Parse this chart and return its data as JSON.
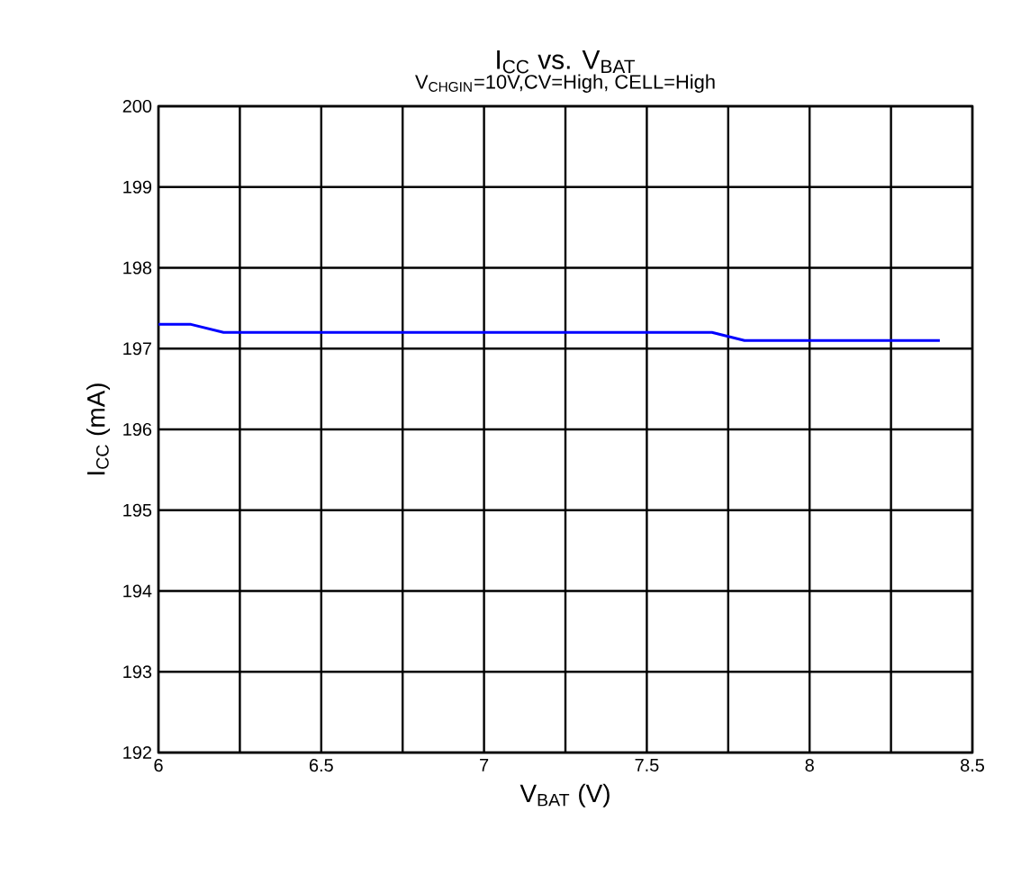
{
  "chart_data": {
    "type": "line",
    "title": "I$_{CC}$ vs. V$_{BAT}$",
    "subtitle": "V$_{CHGIN}$=10V,CV=High, CELL=High",
    "xlabel": "V$_{BAT}$ (V)",
    "ylabel": "I$_{CC}$ (mA)",
    "x": [
      6.0,
      6.1,
      6.15,
      6.2,
      6.25,
      6.5,
      7.0,
      7.5,
      7.65,
      7.7,
      7.75,
      7.8,
      8.0,
      8.4
    ],
    "series": [
      {
        "color": "#0000ff",
        "values": [
          197.3,
          197.3,
          197.25,
          197.2,
          197.2,
          197.2,
          197.2,
          197.2,
          197.2,
          197.2,
          197.15,
          197.1,
          197.1,
          197.1
        ]
      }
    ],
    "xlim": [
      6,
      8.5
    ],
    "ylim": [
      192,
      200
    ],
    "xticks": [
      6,
      {
        "value": 6.25,
        "label": null
      },
      6.5,
      {
        "value": 6.75,
        "label": null
      },
      7,
      {
        "value": 7.25,
        "label": null
      },
      7.5,
      {
        "value": 7.75,
        "label": null
      },
      8,
      {
        "value": 8.25,
        "label": null
      },
      8.5
    ],
    "yticks": [
      192,
      193,
      194,
      195,
      196,
      197,
      198,
      199,
      200
    ],
    "grid": true,
    "marker": "none",
    "line_style": "solid"
  }
}
